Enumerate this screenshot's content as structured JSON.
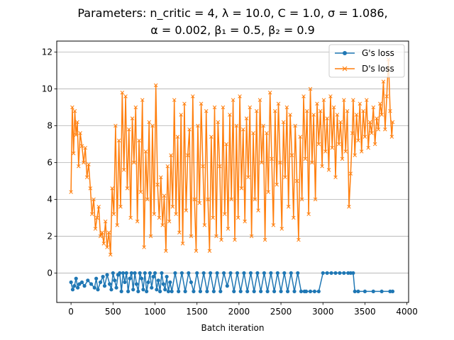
{
  "chart_data": {
    "type": "line",
    "title_line1": "Parameters: n_critic = 4, λ = 10.0, C = 1.0, σ = 1.086,",
    "title_line2": "α = 0.002, β₁ = 0.5, β₂ = 0.9",
    "xlabel": "Batch iteration",
    "ylabel": "",
    "xlim": [
      -170,
      4020
    ],
    "ylim": [
      -1.6,
      12.6
    ],
    "xticks": [
      0,
      500,
      1000,
      1500,
      2000,
      2500,
      3000,
      3500,
      4000
    ],
    "yticks": [
      0,
      2,
      4,
      6,
      8,
      10,
      12
    ],
    "grid": "y-major",
    "legend_position": "top-right",
    "series": [
      {
        "name": "G's loss",
        "color": "#1f77b4",
        "marker": "circle",
        "x": [
          0,
          20,
          40,
          60,
          80,
          100,
          130,
          160,
          200,
          240,
          280,
          300,
          320,
          350,
          380,
          400,
          430,
          460,
          480,
          500,
          520,
          540,
          560,
          580,
          600,
          620,
          640,
          660,
          680,
          700,
          720,
          740,
          760,
          780,
          800,
          820,
          840,
          860,
          880,
          900,
          920,
          940,
          960,
          980,
          1000,
          1020,
          1040,
          1060,
          1080,
          1100,
          1120,
          1140,
          1160,
          1180,
          1200,
          1240,
          1280,
          1320,
          1360,
          1400,
          1430,
          1460,
          1500,
          1540,
          1580,
          1620,
          1660,
          1700,
          1740,
          1780,
          1820,
          1860,
          1900,
          1940,
          1980,
          2020,
          2060,
          2100,
          2140,
          2180,
          2220,
          2260,
          2300,
          2340,
          2380,
          2420,
          2460,
          2500,
          2540,
          2580,
          2620,
          2660,
          2700,
          2740,
          2780,
          2800,
          2850,
          2900,
          2950,
          3000,
          3050,
          3100,
          3150,
          3200,
          3250,
          3300,
          3330,
          3360,
          3380,
          3420,
          3500,
          3600,
          3700,
          3800,
          3830
        ],
        "y": [
          -0.5,
          -0.9,
          -0.7,
          -0.3,
          -0.8,
          -0.6,
          -0.5,
          -0.7,
          -0.4,
          -0.6,
          -0.8,
          -0.3,
          -0.9,
          -0.5,
          -0.2,
          -0.7,
          -0.1,
          -0.6,
          -0.9,
          0.0,
          -0.4,
          -0.8,
          -0.1,
          0.0,
          -1.0,
          0.0,
          -0.5,
          0.0,
          -1.0,
          -0.3,
          0.0,
          -0.9,
          0.0,
          -0.6,
          -1.0,
          0.0,
          -0.3,
          -0.9,
          0.0,
          -1.0,
          -0.5,
          0.0,
          -0.8,
          -0.2,
          0.0,
          -0.9,
          -0.4,
          -1.0,
          0.0,
          -0.6,
          -0.9,
          -0.2,
          -1.0,
          -0.5,
          -1.0,
          0.0,
          -1.0,
          0.0,
          -1.0,
          0.0,
          -0.5,
          -1.0,
          0.0,
          -1.0,
          0.0,
          -1.0,
          0.0,
          -1.0,
          0.0,
          -1.0,
          0.0,
          -0.7,
          0.0,
          -1.0,
          0.0,
          -1.0,
          0.0,
          -1.0,
          0.0,
          -1.0,
          0.0,
          -1.0,
          0.0,
          -1.0,
          0.0,
          -1.0,
          0.0,
          -1.0,
          0.0,
          -1.0,
          0.0,
          -1.0,
          0.0,
          -1.0,
          -1.0,
          -1.0,
          -1.0,
          -1.0,
          -1.0,
          0.0,
          0.0,
          0.0,
          0.0,
          0.0,
          0.0,
          0.0,
          0.0,
          0.0,
          -1.0,
          -1.0,
          -1.0,
          -1.0,
          -1.0,
          -1.0,
          -1.0
        ]
      },
      {
        "name": "D's loss",
        "color": "#ff7f0e",
        "marker": "x",
        "x": [
          0,
          15,
          30,
          45,
          60,
          75,
          90,
          110,
          130,
          150,
          170,
          190,
          210,
          230,
          250,
          270,
          290,
          310,
          330,
          350,
          370,
          390,
          410,
          430,
          450,
          470,
          490,
          510,
          530,
          550,
          570,
          590,
          610,
          630,
          650,
          670,
          690,
          710,
          730,
          750,
          770,
          790,
          810,
          830,
          850,
          870,
          890,
          910,
          930,
          950,
          970,
          990,
          1010,
          1030,
          1050,
          1070,
          1090,
          1110,
          1130,
          1150,
          1170,
          1190,
          1210,
          1230,
          1250,
          1270,
          1290,
          1310,
          1330,
          1350,
          1370,
          1390,
          1410,
          1430,
          1450,
          1470,
          1490,
          1510,
          1530,
          1550,
          1570,
          1590,
          1610,
          1630,
          1650,
          1670,
          1690,
          1710,
          1730,
          1750,
          1770,
          1790,
          1810,
          1830,
          1850,
          1870,
          1890,
          1910,
          1930,
          1950,
          1970,
          1990,
          2010,
          2030,
          2050,
          2070,
          2090,
          2110,
          2130,
          2150,
          2170,
          2190,
          2210,
          2230,
          2250,
          2270,
          2290,
          2310,
          2330,
          2350,
          2370,
          2390,
          2410,
          2430,
          2450,
          2470,
          2490,
          2510,
          2530,
          2550,
          2570,
          2590,
          2610,
          2630,
          2650,
          2670,
          2690,
          2710,
          2730,
          2750,
          2770,
          2790,
          2810,
          2830,
          2850,
          2870,
          2890,
          2910,
          2930,
          2950,
          2970,
          2990,
          3010,
          3030,
          3050,
          3070,
          3090,
          3110,
          3130,
          3150,
          3170,
          3190,
          3210,
          3230,
          3250,
          3270,
          3290,
          3310,
          3330,
          3350,
          3360,
          3380,
          3400,
          3420,
          3440,
          3460,
          3480,
          3500,
          3520,
          3540,
          3560,
          3580,
          3600,
          3620,
          3640,
          3660,
          3680,
          3700,
          3720,
          3740,
          3760,
          3780,
          3800,
          3820,
          3830
        ],
        "y": [
          4.4,
          9.0,
          6.5,
          8.8,
          7.5,
          8.2,
          5.8,
          7.6,
          6.9,
          6.0,
          6.8,
          5.2,
          5.9,
          4.6,
          3.2,
          4.0,
          2.4,
          3.0,
          3.6,
          2.0,
          2.2,
          1.6,
          2.8,
          1.4,
          2.2,
          1.0,
          4.6,
          3.2,
          8.0,
          2.6,
          7.2,
          3.6,
          9.8,
          5.6,
          9.6,
          4.6,
          7.8,
          3.0,
          8.4,
          6.0,
          9.0,
          2.8,
          7.2,
          4.4,
          9.4,
          1.4,
          6.6,
          4.0,
          8.2,
          2.0,
          8.0,
          3.2,
          10.2,
          4.8,
          3.0,
          5.2,
          2.6,
          4.2,
          1.2,
          5.8,
          2.8,
          6.4,
          3.6,
          9.4,
          3.2,
          7.4,
          2.2,
          8.6,
          1.6,
          9.2,
          3.4,
          6.4,
          7.8,
          2.0,
          9.6,
          4.0,
          1.2,
          8.0,
          3.8,
          9.2,
          5.8,
          2.6,
          8.8,
          4.0,
          1.2,
          7.4,
          3.0,
          9.0,
          2.0,
          8.2,
          5.8,
          1.8,
          9.0,
          3.2,
          7.0,
          2.4,
          8.6,
          4.0,
          9.4,
          1.8,
          8.0,
          3.0,
          9.6,
          4.6,
          7.8,
          2.8,
          8.4,
          5.2,
          9.0,
          2.0,
          7.6,
          4.0,
          8.8,
          3.4,
          9.4,
          6.0,
          8.0,
          1.8,
          7.6,
          4.4,
          9.8,
          6.2,
          2.6,
          8.8,
          4.8,
          9.2,
          6.0,
          2.4,
          8.2,
          5.2,
          9.0,
          3.6,
          8.6,
          6.4,
          3.0,
          8.0,
          5.0,
          1.8,
          7.4,
          4.0,
          9.6,
          6.2,
          8.8,
          3.2,
          10.0,
          6.0,
          8.6,
          4.0,
          9.2,
          7.0,
          8.8,
          5.8,
          9.4,
          6.6,
          8.4,
          5.6,
          9.6,
          6.8,
          9.0,
          5.2,
          8.6,
          7.0,
          8.2,
          6.2,
          9.4,
          6.6,
          8.8,
          3.6,
          5.4,
          7.6,
          9.4,
          6.4,
          8.6,
          7.2,
          9.2,
          6.6,
          8.8,
          7.4,
          9.4,
          6.8,
          8.2,
          7.6,
          9.0,
          7.0,
          8.4,
          7.8,
          9.2,
          8.6,
          10.4,
          7.8,
          9.6,
          11.6,
          8.8,
          7.4,
          8.2
        ]
      }
    ]
  }
}
